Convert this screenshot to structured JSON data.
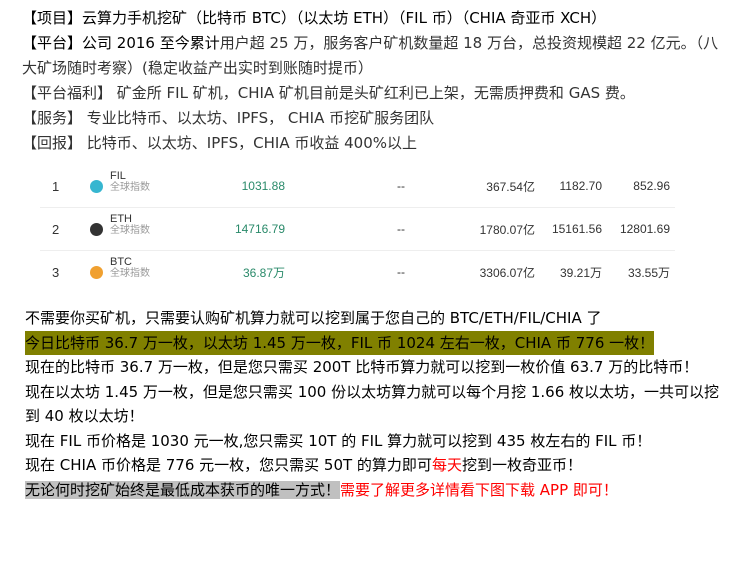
{
  "top": {
    "project_label": "【项目】",
    "project_text": "云算力手机挖矿（比特币 BTC）（以太坊 ETH）（FIL 币）（CHIA 奇亚币 XCH）",
    "platform_label": "【平台】",
    "platform_text_a": "公司 2016 至今累计",
    "platform_text_b": "用户超 25 万，服务客户矿机数量超 18 万台，总投资规模超 22 亿元。（八大矿场随时考察）(稳定收益产出实时到账随时提币）",
    "welfare_label": "【平台福利】",
    "welfare_text": " 矿金所 FIL 矿机，CHIA 矿机目前是头矿红利已上架，无需质押费和 GAS 费。",
    "service_label": "【服务】",
    "service_text": " 专业比特币、以太坊、IPFS， CHIA 币挖矿服务团队",
    "return_label": "【回报】",
    "return_text": " 比特币、以太坊、IPFS，CHIA 币收益 400%以上"
  },
  "table": [
    {
      "rank": "1",
      "symbol": "FIL",
      "sub": "全球指数",
      "price": "1031.88",
      "change": "--",
      "cap": "367.54亿",
      "high": "1182.70",
      "low": "852.96",
      "icon": "filecoin-icon",
      "color": "#36b6d0"
    },
    {
      "rank": "2",
      "symbol": "ETH",
      "sub": "全球指数",
      "price": "14716.79",
      "change": "--",
      "cap": "1780.07亿",
      "high": "15161.56",
      "low": "12801.69",
      "icon": "ethereum-icon",
      "color": "#333333"
    },
    {
      "rank": "3",
      "symbol": "BTC",
      "sub": "全球指数",
      "price": "36.87万",
      "change": "--",
      "cap": "3306.07亿",
      "high": "39.21万",
      "low": "33.55万",
      "icon": "bitcoin-icon",
      "color": "#f0a030"
    }
  ],
  "bottom": {
    "l1": "不需要你买矿机，只需要认购矿机算力就可以挖到属于您自己的 BTC/ETH/FIL/CHIA 了",
    "l2": "今日比特币 36.7 万一枚，以太坊 1.45 万一枚，FIL 币 1024 左右一枚，CHIA 币 776 一枚！",
    "l3": "现在的比特币 36.7 万一枚，但是您只需买 200T 比特币算力就可以挖到一枚价值 63.7 万的比特币！",
    "l4": "现在以太坊 1.45 万一枚，但是您只需买 100 份以太坊算力就可以每个月挖 1.66 枚以太坊，一共可以挖到 40 枚以太坊！",
    "l5": "现在 FIL 币价格是 1030 元一枚,您只需买 10T 的 FIL 算力就可以挖到 435 枚左右的 FIL 币！",
    "l6a": "现在 CHIA 币价格是 776 元一枚，您只需买 50T 的算力即可",
    "l6b": "每天",
    "l6c": "挖到一枚奇亚币！",
    "l7a": "无论何时挖矿始终是最低成本获币的唯一方式！",
    "l7b": "需要了解更多详情看下图下载 APP 即可！"
  },
  "colors": {
    "highlight": "#808000",
    "gray": "#c0c0c0",
    "red": "#ff0000"
  }
}
